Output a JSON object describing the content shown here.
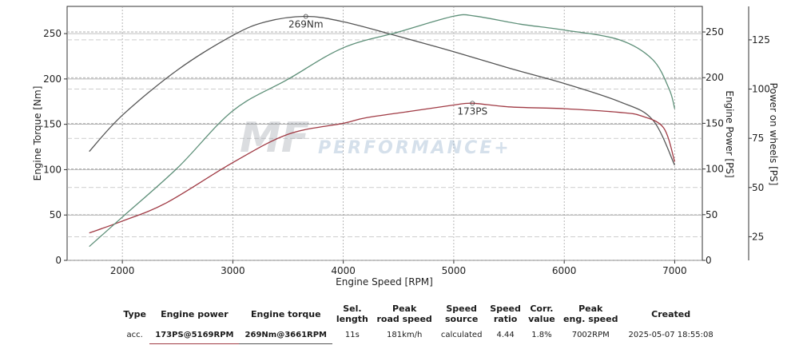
{
  "chart_data": {
    "type": "line",
    "xlabel": "Engine Speed [RPM]",
    "ylabel_left": "Engine Torque [Nm]",
    "ylabel_right_inner": "Engine Power [PS]",
    "ylabel_right_outer": "Power on wheels [PS]",
    "x_ticks": [
      2000,
      3000,
      4000,
      5000,
      6000,
      7000
    ],
    "y_left_ticks": [
      0,
      50,
      100,
      150,
      200,
      250
    ],
    "y_right_inner_ticks": [
      0,
      50,
      100,
      150,
      200,
      250
    ],
    "y_right_outer_ticks": [
      25,
      50,
      75,
      100,
      125
    ],
    "xlim": [
      1500,
      7250
    ],
    "ylim_left": [
      0,
      280
    ],
    "ylim_right_inner": [
      0,
      278
    ],
    "ylim_right_outer": [
      13,
      142
    ],
    "grid": true,
    "series": [
      {
        "color": "#555555",
        "axis": "left",
        "x": [
          1700,
          2000,
          2500,
          3000,
          3300,
          3661,
          4000,
          4500,
          5000,
          5500,
          6000,
          6500,
          6800,
          7000
        ],
        "y": [
          120,
          160,
          210,
          248,
          263,
          269,
          263,
          247,
          230,
          212,
          195,
          175,
          155,
          105
        ]
      },
      {
        "color": "#a03a44",
        "axis": "right_inner",
        "x": [
          1700,
          2000,
          2400,
          3000,
          3500,
          4000,
          4200,
          4600,
          5000,
          5169,
          5500,
          6000,
          6500,
          6700,
          6900,
          7000
        ],
        "y": [
          30,
          43,
          63,
          107,
          138,
          150,
          156,
          163,
          170,
          172,
          168,
          166,
          162,
          158,
          145,
          108
        ]
      },
      {
        "color": "#5d8f78",
        "axis": "right_outer",
        "x": [
          1700,
          2000,
          2500,
          3000,
          3500,
          4000,
          4500,
          5000,
          5200,
          5600,
          6000,
          6500,
          6800,
          6950,
          7000
        ],
        "y": [
          20,
          35,
          60,
          89,
          105,
          121,
          129,
          137,
          137,
          133,
          130,
          125,
          115,
          100,
          90
        ]
      }
    ],
    "annotations": [
      {
        "text": "269Nm",
        "x": 3661,
        "y": 269,
        "axis": "left"
      },
      {
        "text": "173PS",
        "x": 5169,
        "y": 172,
        "axis": "right_inner"
      }
    ],
    "watermark": {
      "logo": "MF",
      "text": "PERFORMANCE+"
    }
  },
  "summary": {
    "headers": {
      "type": "Type",
      "engine_power": "Engine power",
      "engine_torque": "Engine torque",
      "sel_length": "Sel.\nlength",
      "peak_road_speed": "Peak\nroad speed",
      "speed_source": "Speed\nsource",
      "speed_ratio": "Speed\nratio",
      "corr_value": "Corr.\nvalue",
      "peak_eng_speed": "Peak\neng. speed",
      "created": "Created"
    },
    "row": {
      "type": "acc.",
      "engine_power": "173PS@5169RPM",
      "engine_torque": "269Nm@3661RPM",
      "sel_length": "11s",
      "peak_road_speed": "181km/h",
      "speed_source": "calculated",
      "speed_ratio": "4.44",
      "corr_value": "1.8%",
      "peak_eng_speed": "7002RPM",
      "created": "2025-05-07 18:55:08"
    }
  }
}
